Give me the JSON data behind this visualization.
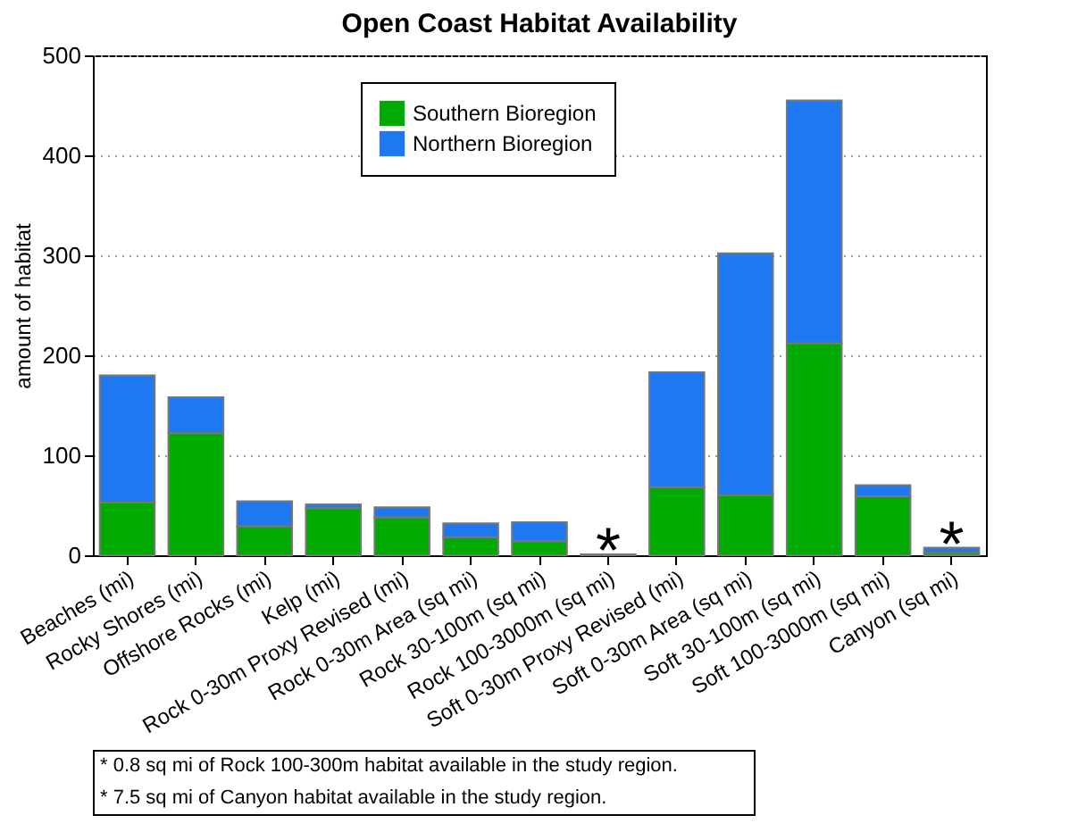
{
  "chart_data": {
    "type": "bar",
    "title": "Open Coast Habitat Availability",
    "ylabel": "amount of habitat",
    "categories": [
      "Beaches (mi)",
      "Rocky Shores (mi)",
      "Offshore Rocks (mi)",
      "Kelp (mi)",
      "Rock 0-30m Proxy Revised (mi)",
      "Rock 0-30m Area (sq mi)",
      "Rock 30-100m (sq mi)",
      "Rock 100-3000m (sq mi)",
      "Soft 0-30m Proxy Revised (mi)",
      "Soft 0-30m Area (sq mi)",
      "Soft 30-100m (sq mi)",
      "Soft 100-3000m (sq mi)",
      "Canyon (sq mi)"
    ],
    "stacked": true,
    "series": [
      {
        "name": "Southern Bioregion",
        "color": "#00aa00",
        "values": [
          53,
          122,
          29,
          47,
          38,
          18,
          14,
          0.8,
          68,
          60,
          212,
          59,
          2.5
        ]
      },
      {
        "name": "Northern Bioregion",
        "color": "#1e78f0",
        "values": [
          127,
          36,
          25,
          4,
          10,
          14,
          19,
          null,
          115,
          242,
          243,
          11,
          5
        ]
      }
    ],
    "ylim": [
      0,
      500
    ],
    "yticks": [
      0,
      100,
      200,
      300,
      400,
      500
    ],
    "grid": "y",
    "legend": "top",
    "annotations": [
      {
        "text": "*",
        "x": "Rock 100-3000m (sq mi)",
        "y": 0.8
      },
      {
        "text": "*",
        "x": "Canyon (sq mi)",
        "y": 7.5
      },
      "* 0.8 sq mi of Rock 100-300m habitat available in the study region.",
      "* 7.5 sq mi of Canyon habitat available in the study region."
    ]
  }
}
